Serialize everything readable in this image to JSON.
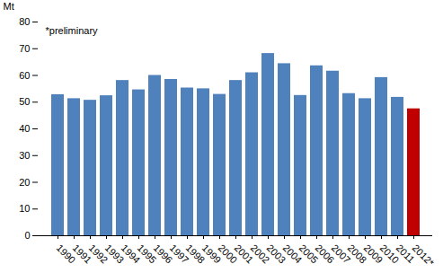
{
  "chart_data": {
    "type": "bar",
    "y_label": "Mt",
    "annotation": "*preliminary",
    "categories": [
      "1990",
      "1991",
      "1992",
      "1993",
      "1994",
      "1995",
      "1996",
      "1997",
      "1998",
      "1999",
      "2000",
      "2001",
      "2002",
      "2003",
      "2004",
      "2005",
      "2006",
      "2007",
      "2008",
      "2009",
      "2010",
      "2011",
      "2012*"
    ],
    "values": [
      52.8,
      51.3,
      50.7,
      52.4,
      58.1,
      54.6,
      60.0,
      58.5,
      55.3,
      55.0,
      52.9,
      58.1,
      61.0,
      68.2,
      64.4,
      52.5,
      63.6,
      61.6,
      53.2,
      51.3,
      59.2,
      51.8,
      47.5
    ],
    "colors": [
      "#4f81bd",
      "#4f81bd",
      "#4f81bd",
      "#4f81bd",
      "#4f81bd",
      "#4f81bd",
      "#4f81bd",
      "#4f81bd",
      "#4f81bd",
      "#4f81bd",
      "#4f81bd",
      "#4f81bd",
      "#4f81bd",
      "#4f81bd",
      "#4f81bd",
      "#4f81bd",
      "#4f81bd",
      "#4f81bd",
      "#4f81bd",
      "#4f81bd",
      "#4f81bd",
      "#4f81bd",
      "#c00000"
    ],
    "ylim": [
      0,
      80
    ],
    "yticks": [
      0,
      10,
      20,
      30,
      40,
      50,
      60,
      70,
      80
    ],
    "grid": false
  }
}
